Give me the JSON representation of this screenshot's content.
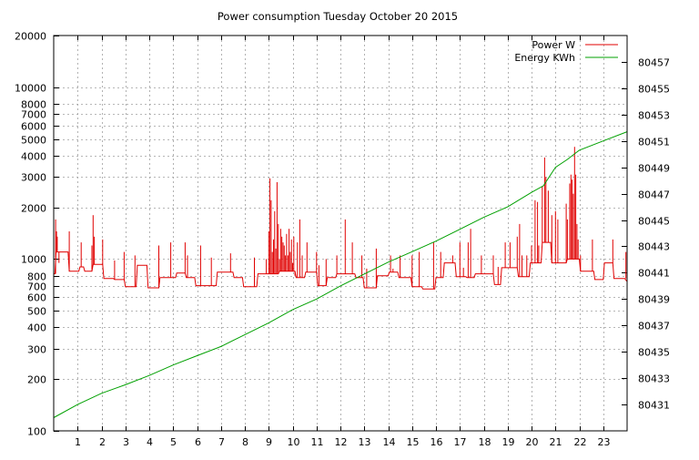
{
  "chart_data": {
    "type": "line",
    "title": "Power consumption Tuesday October 20 2015",
    "xlabel": "",
    "ylabel": "",
    "y2label": "",
    "grid": true,
    "legend_position": "top-right",
    "x_range": [
      0,
      24
    ],
    "x_ticks": [
      1,
      2,
      3,
      4,
      5,
      6,
      7,
      8,
      9,
      10,
      11,
      12,
      13,
      14,
      15,
      16,
      17,
      18,
      19,
      20,
      21,
      22,
      23
    ],
    "y_scale": "log",
    "y_range": [
      100,
      20000
    ],
    "y_ticks": [
      100,
      200,
      300,
      400,
      500,
      600,
      700,
      800,
      1000,
      2000,
      3000,
      4000,
      5000,
      6000,
      7000,
      8000,
      10000,
      20000
    ],
    "y_tick_labels": [
      "100",
      "200",
      "300",
      "400",
      "500",
      "600",
      "700",
      "800",
      "1000",
      "2000",
      "3000",
      "4000",
      "5000",
      "6000",
      "7000",
      "8000",
      "10000",
      "20000"
    ],
    "y2_range": [
      80429,
      80459
    ],
    "y2_ticks": [
      80431,
      80433,
      80435,
      80437,
      80439,
      80441,
      80443,
      80445,
      80447,
      80449,
      80451,
      80453,
      80455,
      80457
    ],
    "series": [
      {
        "name": "Power W",
        "color": "#e00000",
        "axis": "y",
        "base_points": [
          [
            0.0,
            820
          ],
          [
            0.05,
            820
          ],
          [
            0.1,
            1100
          ],
          [
            0.6,
            1100
          ],
          [
            0.65,
            850
          ],
          [
            1.05,
            850
          ],
          [
            1.1,
            900
          ],
          [
            1.25,
            900
          ],
          [
            1.3,
            850
          ],
          [
            1.6,
            850
          ],
          [
            1.65,
            930
          ],
          [
            2.05,
            930
          ],
          [
            2.1,
            770
          ],
          [
            2.5,
            770
          ],
          [
            2.55,
            760
          ],
          [
            2.95,
            760
          ],
          [
            3.0,
            690
          ],
          [
            3.45,
            690
          ],
          [
            3.5,
            920
          ],
          [
            3.9,
            920
          ],
          [
            3.95,
            680
          ],
          [
            4.4,
            680
          ],
          [
            4.45,
            780
          ],
          [
            4.75,
            780
          ],
          [
            4.8,
            780
          ],
          [
            5.1,
            780
          ],
          [
            5.15,
            830
          ],
          [
            5.5,
            830
          ],
          [
            5.55,
            780
          ],
          [
            5.9,
            780
          ],
          [
            5.95,
            700
          ],
          [
            6.8,
            700
          ],
          [
            6.85,
            840
          ],
          [
            7.5,
            840
          ],
          [
            7.55,
            780
          ],
          [
            7.9,
            780
          ],
          [
            7.95,
            690
          ],
          [
            8.5,
            690
          ],
          [
            8.55,
            820
          ],
          [
            9.4,
            820
          ],
          [
            9.45,
            850
          ],
          [
            10.1,
            850
          ],
          [
            10.15,
            780
          ],
          [
            10.5,
            780
          ],
          [
            10.55,
            840
          ],
          [
            11.0,
            840
          ],
          [
            11.05,
            700
          ],
          [
            11.4,
            700
          ],
          [
            11.45,
            780
          ],
          [
            11.8,
            780
          ],
          [
            11.85,
            820
          ],
          [
            12.6,
            820
          ],
          [
            12.65,
            780
          ],
          [
            12.95,
            780
          ],
          [
            13.0,
            680
          ],
          [
            13.5,
            680
          ],
          [
            13.55,
            800
          ],
          [
            14.0,
            800
          ],
          [
            14.05,
            840
          ],
          [
            14.4,
            840
          ],
          [
            14.45,
            780
          ],
          [
            14.95,
            780
          ],
          [
            15.0,
            690
          ],
          [
            15.4,
            690
          ],
          [
            15.45,
            670
          ],
          [
            15.95,
            670
          ],
          [
            16.0,
            780
          ],
          [
            16.3,
            780
          ],
          [
            16.35,
            950
          ],
          [
            16.8,
            950
          ],
          [
            16.85,
            790
          ],
          [
            17.25,
            790
          ],
          [
            17.3,
            780
          ],
          [
            17.6,
            780
          ],
          [
            17.65,
            820
          ],
          [
            18.4,
            820
          ],
          [
            18.45,
            710
          ],
          [
            18.7,
            710
          ],
          [
            18.75,
            890
          ],
          [
            19.4,
            890
          ],
          [
            19.45,
            790
          ],
          [
            19.9,
            790
          ],
          [
            19.95,
            950
          ],
          [
            20.4,
            950
          ],
          [
            20.45,
            1250
          ],
          [
            20.8,
            1250
          ],
          [
            20.85,
            950
          ],
          [
            21.45,
            950
          ],
          [
            21.5,
            1000
          ],
          [
            22.0,
            1000
          ],
          [
            22.05,
            850
          ],
          [
            22.6,
            850
          ],
          [
            22.65,
            760
          ],
          [
            23.0,
            760
          ],
          [
            23.05,
            950
          ],
          [
            23.4,
            950
          ],
          [
            23.45,
            770
          ],
          [
            23.9,
            770
          ],
          [
            24.0,
            740
          ]
        ],
        "spikes": [
          [
            0.08,
            1700
          ],
          [
            0.12,
            1450
          ],
          [
            0.15,
            1350
          ],
          [
            0.22,
            950
          ],
          [
            0.65,
            1450
          ],
          [
            1.15,
            1250
          ],
          [
            1.6,
            1200
          ],
          [
            1.65,
            1800
          ],
          [
            1.7,
            1350
          ],
          [
            2.05,
            1300
          ],
          [
            2.55,
            980
          ],
          [
            2.95,
            1100
          ],
          [
            3.4,
            1050
          ],
          [
            4.4,
            1200
          ],
          [
            4.9,
            1250
          ],
          [
            5.5,
            1250
          ],
          [
            5.6,
            1050
          ],
          [
            6.15,
            1200
          ],
          [
            6.6,
            1020
          ],
          [
            7.4,
            1080
          ],
          [
            8.4,
            1020
          ],
          [
            8.9,
            1000
          ],
          [
            9.0,
            1450
          ],
          [
            9.05,
            2950
          ],
          [
            9.1,
            2200
          ],
          [
            9.15,
            1100
          ],
          [
            9.2,
            1300
          ],
          [
            9.25,
            1900
          ],
          [
            9.3,
            1150
          ],
          [
            9.35,
            2800
          ],
          [
            9.4,
            1600
          ],
          [
            9.45,
            1000
          ],
          [
            9.5,
            1500
          ],
          [
            9.55,
            1350
          ],
          [
            9.6,
            1250
          ],
          [
            9.65,
            1200
          ],
          [
            9.7,
            1050
          ],
          [
            9.75,
            1400
          ],
          [
            9.8,
            1050
          ],
          [
            9.85,
            1500
          ],
          [
            9.9,
            1100
          ],
          [
            9.95,
            1300
          ],
          [
            10.0,
            950
          ],
          [
            10.05,
            1350
          ],
          [
            10.1,
            800
          ],
          [
            10.2,
            1250
          ],
          [
            10.3,
            1700
          ],
          [
            10.4,
            1050
          ],
          [
            10.6,
            1250
          ],
          [
            11.0,
            1100
          ],
          [
            11.1,
            920
          ],
          [
            11.4,
            1000
          ],
          [
            11.85,
            1050
          ],
          [
            12.2,
            1700
          ],
          [
            12.5,
            1250
          ],
          [
            12.9,
            1050
          ],
          [
            13.1,
            880
          ],
          [
            13.5,
            1150
          ],
          [
            14.1,
            1050
          ],
          [
            14.2,
            880
          ],
          [
            14.5,
            1050
          ],
          [
            15.0,
            1050
          ],
          [
            15.3,
            1100
          ],
          [
            15.9,
            1250
          ],
          [
            16.2,
            1100
          ],
          [
            16.7,
            1050
          ],
          [
            17.0,
            1250
          ],
          [
            17.15,
            890
          ],
          [
            17.35,
            1250
          ],
          [
            17.45,
            1500
          ],
          [
            17.9,
            1050
          ],
          [
            18.4,
            1050
          ],
          [
            18.6,
            900
          ],
          [
            18.9,
            1250
          ],
          [
            19.1,
            1250
          ],
          [
            19.4,
            1350
          ],
          [
            19.5,
            1600
          ],
          [
            19.6,
            1050
          ],
          [
            19.8,
            1050
          ],
          [
            20.0,
            1200
          ],
          [
            20.15,
            2200
          ],
          [
            20.25,
            2150
          ],
          [
            20.3,
            1200
          ],
          [
            20.45,
            2650
          ],
          [
            20.55,
            3900
          ],
          [
            20.6,
            3000
          ],
          [
            20.7,
            2500
          ],
          [
            20.85,
            1800
          ],
          [
            21.0,
            1900
          ],
          [
            21.1,
            1700
          ],
          [
            21.45,
            2100
          ],
          [
            21.5,
            1700
          ],
          [
            21.6,
            2750
          ],
          [
            21.65,
            3100
          ],
          [
            21.7,
            2900
          ],
          [
            21.75,
            2400
          ],
          [
            21.8,
            4500
          ],
          [
            21.85,
            3100
          ],
          [
            21.9,
            1600
          ],
          [
            21.95,
            1300
          ],
          [
            22.05,
            1050
          ],
          [
            22.55,
            1300
          ],
          [
            23.4,
            1300
          ],
          [
            23.95,
            1100
          ]
        ]
      },
      {
        "name": "Energy KWh",
        "color": "#00a000",
        "axis": "y2",
        "points": [
          [
            0.0,
            80430.0
          ],
          [
            1.0,
            80431.0
          ],
          [
            2.0,
            80431.85
          ],
          [
            3.0,
            80432.5
          ],
          [
            4.0,
            80433.2
          ],
          [
            5.0,
            80434.0
          ],
          [
            6.0,
            80434.7
          ],
          [
            7.0,
            80435.4
          ],
          [
            8.0,
            80436.3
          ],
          [
            9.0,
            80437.2
          ],
          [
            10.0,
            80438.2
          ],
          [
            11.0,
            80439.0
          ],
          [
            12.0,
            80440.0
          ],
          [
            13.0,
            80440.9
          ],
          [
            14.0,
            80441.8
          ],
          [
            15.0,
            80442.6
          ],
          [
            16.0,
            80443.4
          ],
          [
            17.0,
            80444.3
          ],
          [
            18.0,
            80445.2
          ],
          [
            19.0,
            80446.0
          ],
          [
            20.0,
            80447.1
          ],
          [
            20.5,
            80447.6
          ],
          [
            21.0,
            80449.0
          ],
          [
            21.5,
            80449.6
          ],
          [
            22.0,
            80450.3
          ],
          [
            23.0,
            80451.0
          ],
          [
            24.0,
            80451.7
          ]
        ]
      }
    ]
  }
}
